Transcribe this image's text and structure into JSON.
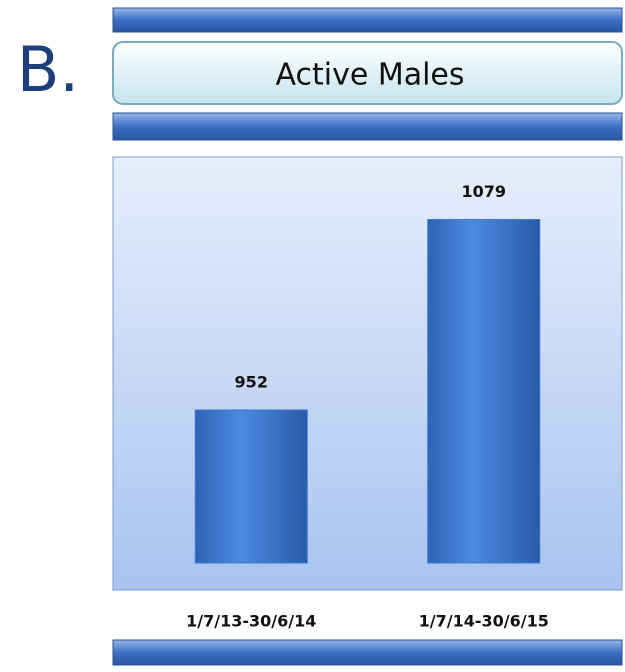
{
  "label": "B.",
  "chart_data": {
    "type": "bar",
    "title": "Active Males",
    "categories": [
      "1/7/13-30/6/14",
      "1/7/14-30/6/15"
    ],
    "values": [
      952,
      1079
    ],
    "color": "#3a78d0",
    "ylim": [
      850,
      1120
    ]
  }
}
